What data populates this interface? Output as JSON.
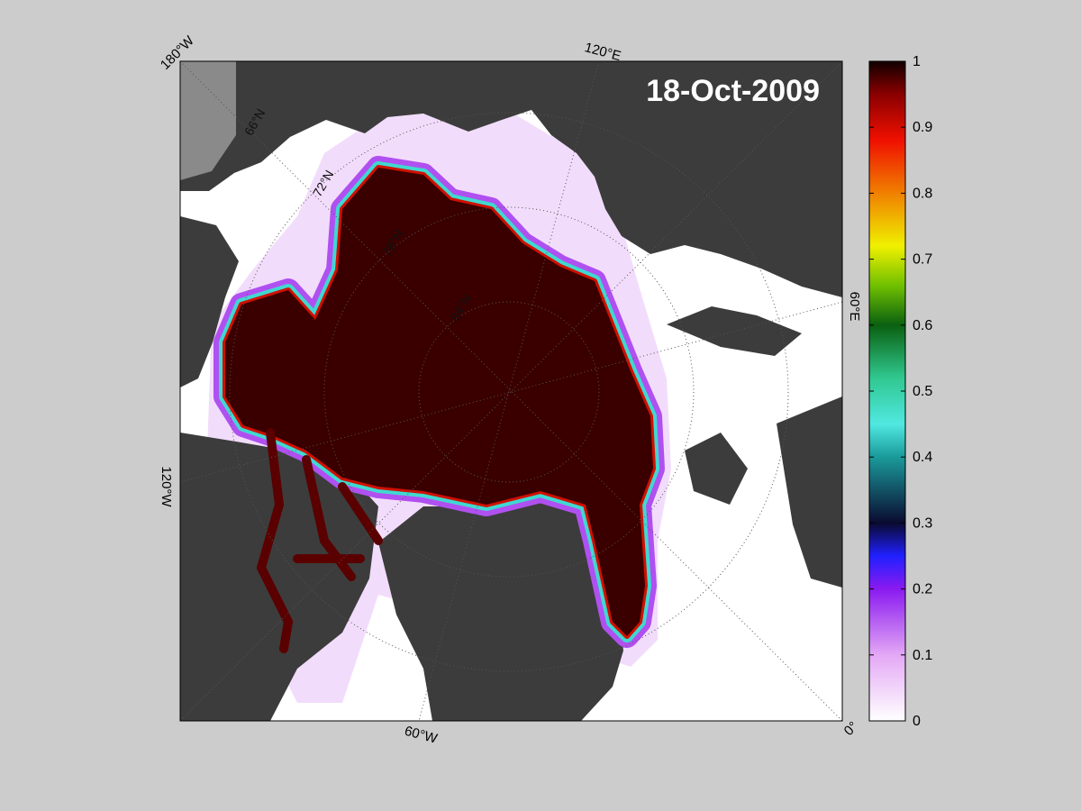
{
  "map": {
    "date": "18-Oct-2009",
    "lon_labels": [
      "180°W",
      "120°E",
      "60°E",
      "0°",
      "60°W",
      "120°W"
    ],
    "lat_labels": [
      "66°N",
      "72°N",
      "78°N",
      "84°N"
    ]
  },
  "colorbar": {
    "lim": [
      0,
      1
    ],
    "ticks": [
      0,
      0.1,
      0.2,
      0.3,
      0.4,
      0.5,
      0.6,
      0.7,
      0.8,
      0.9,
      1
    ]
  }
}
